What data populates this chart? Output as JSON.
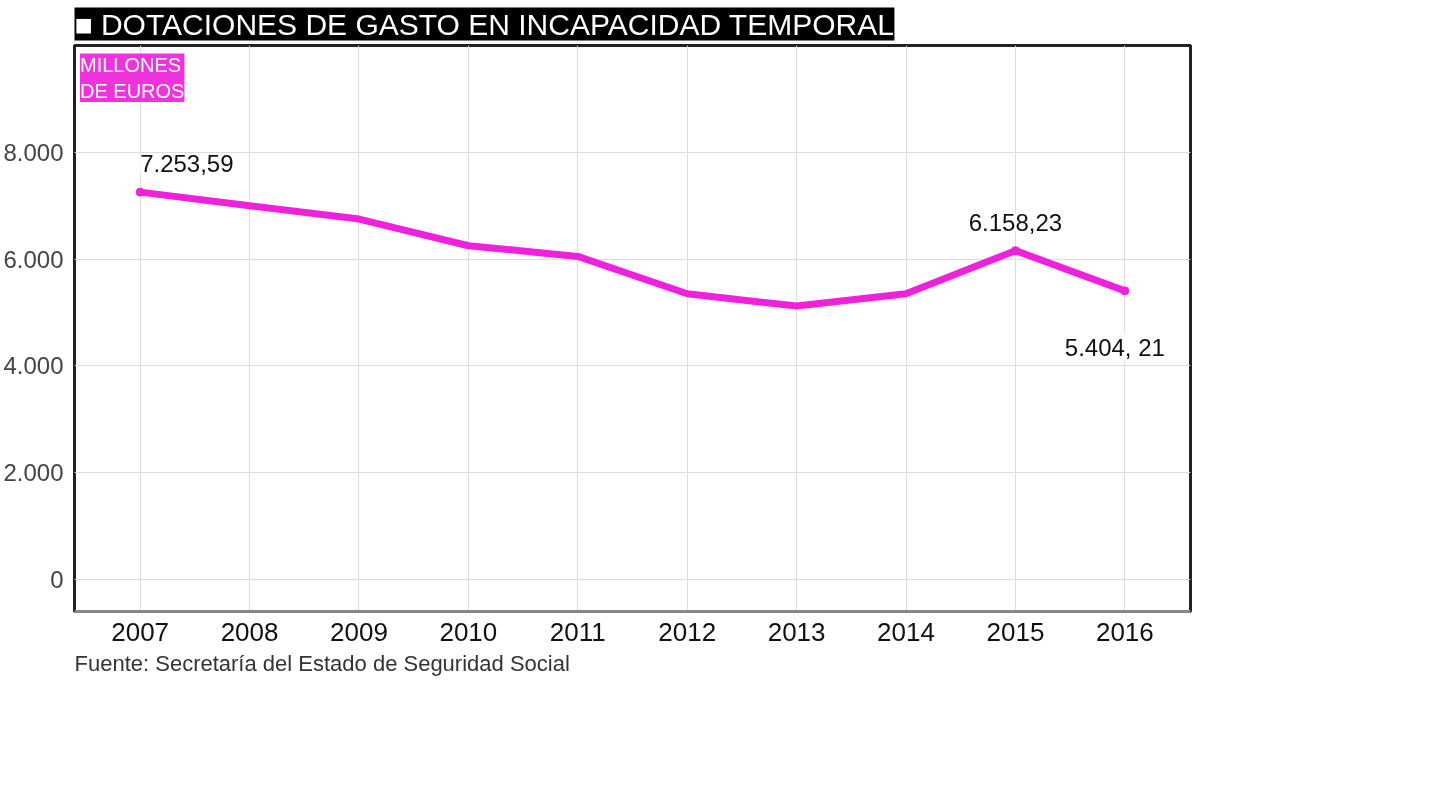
{
  "chart_data": {
    "type": "line",
    "title": "■ DOTACIONES DE GASTO EN INCAPACIDAD TEMPORAL",
    "ylabel": "MILLONES\nDE EUROS",
    "categories": [
      "2007",
      "2008",
      "2009",
      "2010",
      "2011",
      "2012",
      "2013",
      "2014",
      "2015",
      "2016"
    ],
    "series": [
      {
        "color": "#ee22dd",
        "values": [
          7253.59,
          7000,
          6750,
          6250,
          6050,
          5350,
          5120,
          5350,
          6158.23,
          5404.21
        ],
        "value_labels": [
          "7.253,59",
          null,
          null,
          null,
          null,
          null,
          null,
          null,
          "6.158,23",
          "5.404, 21"
        ]
      }
    ],
    "ylim": [
      -600,
      10000
    ],
    "yticks": [
      {
        "value": 0,
        "label": "0"
      },
      {
        "value": 2000,
        "label": "2.000"
      },
      {
        "value": 4000,
        "label": "4.000"
      },
      {
        "value": 6000,
        "label": "6.000"
      },
      {
        "value": 8000,
        "label": "8.000"
      }
    ],
    "grid": true,
    "marker": "none",
    "line_style": "solid",
    "annotations": [
      "Fuente: Secretaría del Estado de Seguridad Social"
    ]
  }
}
